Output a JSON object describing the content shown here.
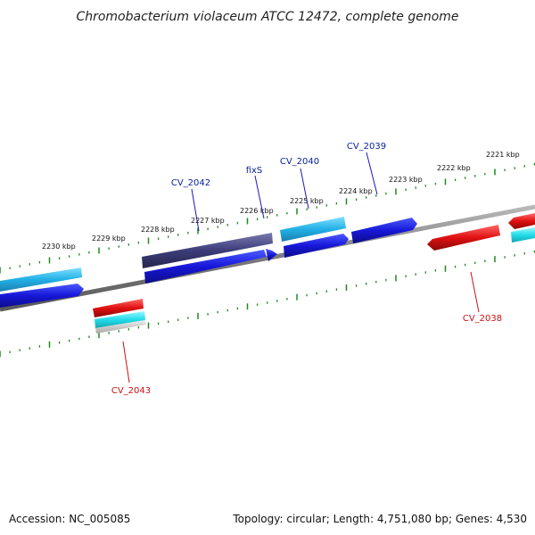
{
  "title": "Chromobacterium violaceum ATCC 12472, complete genome",
  "footer": {
    "accession": "Accession: NC_005085",
    "summary": "Topology: circular; Length: 4,751,080 bp; Genes: 4,530"
  },
  "ruler": [
    "2230 kbp",
    "2229 kbp",
    "2228 kbp",
    "2227 kbp",
    "2226 kbp",
    "2225 kbp",
    "2224 kbp",
    "2223 kbp",
    "2222 kbp",
    "2221 kbp"
  ],
  "genes": [
    {
      "name": "CV_2042",
      "color": "#0a22a0"
    },
    {
      "name": "fixS",
      "color": "#0a22a0"
    },
    {
      "name": "CV_2040",
      "color": "#0a22a0"
    },
    {
      "name": "CV_2039",
      "color": "#0a22a0"
    },
    {
      "name": "CV_2043",
      "color": "#cc1111"
    },
    {
      "name": "CV_2038",
      "color": "#cc1111"
    }
  ],
  "colors": {
    "forward_cds": "#1a1ae0",
    "forward_gene": "#28b4e8",
    "reverse_cds": "#e01010",
    "reverse_gene": "#20d8e8",
    "operon": "#3c3c7a",
    "backbone": "#8a8a8a",
    "ticks": "#1e8a1e"
  }
}
